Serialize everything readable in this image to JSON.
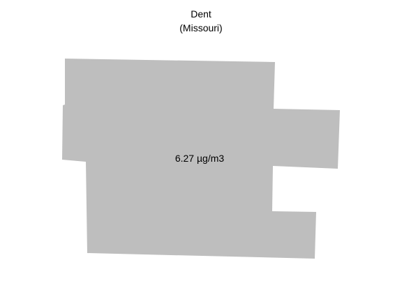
{
  "map": {
    "county_name": "Dent",
    "state_label": "(Missouri)",
    "value_label": "6.27 µg/m3",
    "fill_color": "#bebebe"
  }
}
